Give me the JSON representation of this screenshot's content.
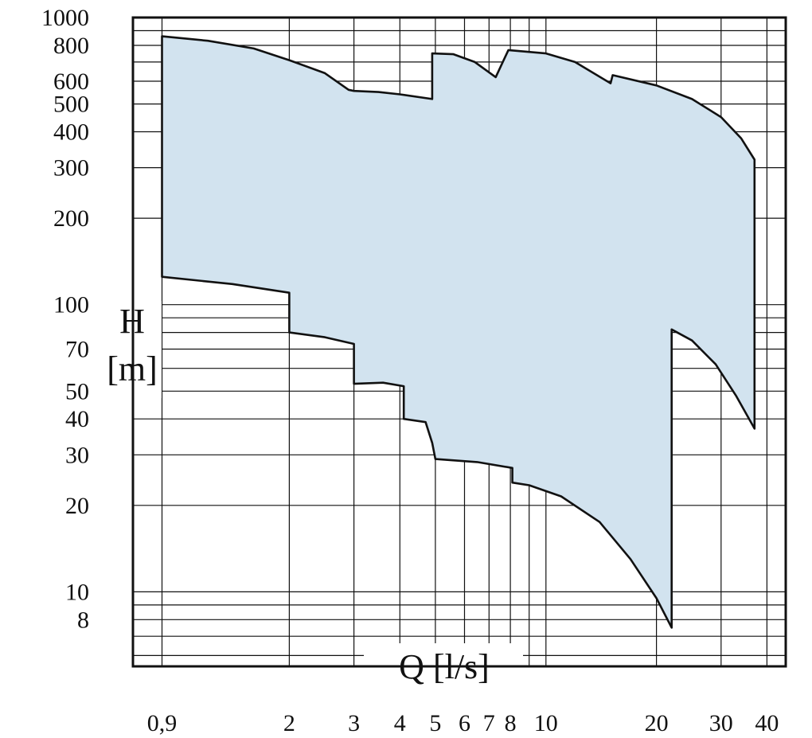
{
  "chart_data": {
    "type": "area",
    "title": "",
    "xlabel": "Q [l/s]",
    "ylabel_line1": "H",
    "ylabel_line2": "[m]",
    "x_scale": "log",
    "y_scale": "log",
    "xlim": [
      0.75,
      45
    ],
    "ylim": [
      5.5,
      1000
    ],
    "grid": true,
    "legend": "none",
    "fill_color": "#d2e3ef",
    "line_color": "#111111",
    "x_ticks": [
      {
        "value": 0.9,
        "label": "0,9"
      },
      {
        "value": 2,
        "label": "2"
      },
      {
        "value": 3,
        "label": "3"
      },
      {
        "value": 4,
        "label": "4"
      },
      {
        "value": 5,
        "label": "5"
      },
      {
        "value": 6,
        "label": "6"
      },
      {
        "value": 7,
        "label": "7"
      },
      {
        "value": 8,
        "label": "8"
      },
      {
        "value": 10,
        "label": "10"
      },
      {
        "value": 20,
        "label": "20"
      },
      {
        "value": 30,
        "label": "30"
      },
      {
        "value": 40,
        "label": "40"
      }
    ],
    "y_ticks": [
      {
        "value": 1000,
        "label": "1000"
      },
      {
        "value": 800,
        "label": "800"
      },
      {
        "value": 600,
        "label": "600"
      },
      {
        "value": 500,
        "label": "500"
      },
      {
        "value": 400,
        "label": "400"
      },
      {
        "value": 300,
        "label": "300"
      },
      {
        "value": 200,
        "label": "200"
      },
      {
        "value": 100,
        "label": "100"
      },
      {
        "value": 70,
        "label": "70"
      },
      {
        "value": 50,
        "label": "50"
      },
      {
        "value": 40,
        "label": "40"
      },
      {
        "value": 30,
        "label": "30"
      },
      {
        "value": 20,
        "label": "20"
      },
      {
        "value": 10,
        "label": "10"
      },
      {
        "value": 8,
        "label": "8"
      }
    ],
    "x_gridlines": [
      0.9,
      2,
      3,
      4,
      5,
      6,
      7,
      8,
      9,
      10,
      20,
      30,
      40
    ],
    "y_gridlines": [
      900,
      800,
      700,
      600,
      500,
      400,
      300,
      200,
      100,
      90,
      80,
      70,
      60,
      50,
      40,
      30,
      20,
      10,
      9,
      8,
      7,
      6
    ],
    "envelope": [
      [
        0.9,
        860
      ],
      [
        1.2,
        830
      ],
      [
        1.6,
        780
      ],
      [
        2.0,
        710
      ],
      [
        2.5,
        640
      ],
      [
        2.9,
        560
      ],
      [
        3.0,
        555
      ],
      [
        3.5,
        550
      ],
      [
        4.0,
        540
      ],
      [
        4.9,
        520
      ],
      [
        4.9,
        750
      ],
      [
        5.6,
        745
      ],
      [
        6.4,
        700
      ],
      [
        7.3,
        620
      ],
      [
        7.9,
        770
      ],
      [
        10.0,
        750
      ],
      [
        12.0,
        700
      ],
      [
        15.0,
        590
      ],
      [
        15.2,
        630
      ],
      [
        20.0,
        580
      ],
      [
        25.0,
        520
      ],
      [
        30.0,
        450
      ],
      [
        34.0,
        380
      ],
      [
        37.0,
        320
      ],
      [
        37.0,
        37
      ],
      [
        33.0,
        48
      ],
      [
        29.0,
        62
      ],
      [
        25.0,
        75
      ],
      [
        22.0,
        82
      ],
      [
        22.0,
        7.5
      ],
      [
        20.0,
        9.5
      ],
      [
        17.0,
        13
      ],
      [
        14.0,
        17.5
      ],
      [
        11.0,
        21.5
      ],
      [
        9.0,
        23.5
      ],
      [
        8.1,
        24
      ],
      [
        8.1,
        27
      ],
      [
        6.5,
        28.3
      ],
      [
        5.0,
        29
      ],
      [
        4.9,
        33
      ],
      [
        4.7,
        39
      ],
      [
        4.1,
        40
      ],
      [
        4.1,
        52
      ],
      [
        3.6,
        53.5
      ],
      [
        3.0,
        53
      ],
      [
        3.0,
        73
      ],
      [
        2.5,
        77
      ],
      [
        2.0,
        80
      ],
      [
        2.0,
        110
      ],
      [
        1.4,
        118
      ],
      [
        0.9,
        125
      ]
    ]
  }
}
